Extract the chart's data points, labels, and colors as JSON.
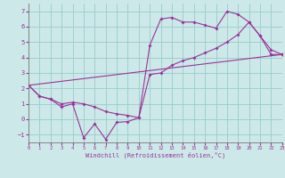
{
  "bg_color": "#cce8e8",
  "line_color": "#993399",
  "grid_color": "#99cccc",
  "xlim": [
    0,
    23
  ],
  "ylim": [
    -1.5,
    7.5
  ],
  "xticks": [
    0,
    1,
    2,
    3,
    4,
    5,
    6,
    7,
    8,
    9,
    10,
    11,
    12,
    13,
    14,
    15,
    16,
    17,
    18,
    19,
    20,
    21,
    22,
    23
  ],
  "yticks": [
    -1,
    0,
    1,
    2,
    3,
    4,
    5,
    6,
    7
  ],
  "xlabel": "Windchill (Refroidissement éolien,°C)",
  "line1_x": [
    0,
    1,
    2,
    3,
    4,
    5,
    6,
    7,
    8,
    9,
    10,
    11,
    12,
    13,
    14,
    15,
    16,
    17,
    18,
    19,
    20,
    21,
    22,
    23
  ],
  "line1_y": [
    2.2,
    1.5,
    1.3,
    0.8,
    1.0,
    -1.2,
    -0.3,
    -1.3,
    -0.2,
    -0.15,
    0.1,
    4.8,
    6.5,
    6.6,
    6.3,
    6.3,
    6.1,
    5.9,
    7.0,
    6.8,
    6.3,
    5.4,
    4.2,
    4.2
  ],
  "line2_x": [
    0,
    1,
    2,
    3,
    4,
    5,
    6,
    7,
    8,
    9,
    10,
    11,
    12,
    13,
    14,
    15,
    16,
    17,
    18,
    19,
    20,
    21,
    22,
    23
  ],
  "line2_y": [
    2.2,
    1.5,
    1.3,
    1.0,
    1.1,
    1.0,
    0.8,
    0.5,
    0.35,
    0.25,
    0.1,
    2.9,
    3.0,
    3.5,
    3.8,
    4.0,
    4.3,
    4.6,
    5.0,
    5.5,
    6.3,
    5.4,
    4.5,
    4.2
  ],
  "line3_x": [
    0,
    23
  ],
  "line3_y": [
    2.2,
    4.2
  ]
}
